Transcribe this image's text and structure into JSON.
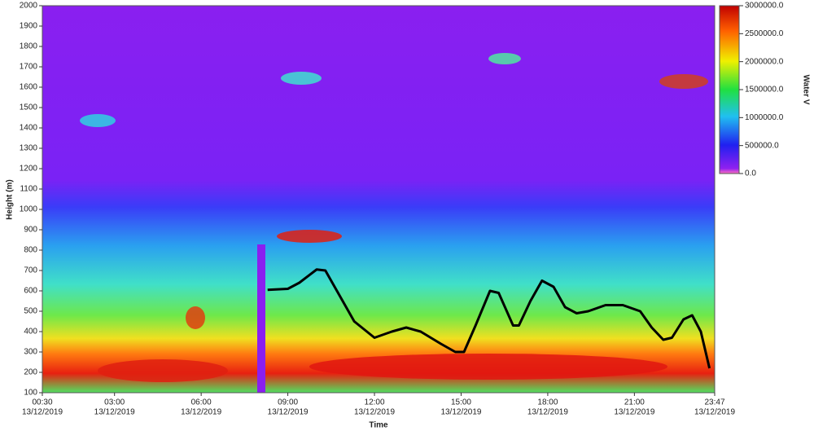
{
  "chart_data": {
    "type": "line",
    "x_label": "Time",
    "y_label": "Height (m)",
    "xlim": [
      0.5,
      23.78
    ],
    "ylim": [
      100,
      2000
    ],
    "xticks": [
      {
        "value": 0.5,
        "label": "00:30",
        "date": "13/12/2019"
      },
      {
        "value": 3,
        "label": "03:00",
        "date": "13/12/2019"
      },
      {
        "value": 6,
        "label": "06:00",
        "date": "13/12/2019"
      },
      {
        "value": 9,
        "label": "09:00",
        "date": "13/12/2019"
      },
      {
        "value": 12,
        "label": "12:00",
        "date": "13/12/2019"
      },
      {
        "value": 15,
        "label": "15:00",
        "date": "13/12/2019"
      },
      {
        "value": 18,
        "label": "18:00",
        "date": "13/12/2019"
      },
      {
        "value": 21,
        "label": "21:00",
        "date": "13/12/2019"
      },
      {
        "value": 23.78,
        "label": "23:47",
        "date": "13/12/2019"
      }
    ],
    "yticks": [
      100,
      200,
      300,
      400,
      500,
      600,
      700,
      800,
      900,
      1000,
      1100,
      1200,
      1300,
      1400,
      1500,
      1600,
      1700,
      1800,
      1900,
      2000
    ],
    "series": [
      {
        "color": "#000000",
        "x": [
          8.3,
          9.0,
          9.4,
          10.0,
          10.3,
          10.7,
          11.3,
          12.0,
          12.6,
          13.1,
          13.6,
          14.3,
          14.8,
          15.1,
          15.5,
          16.0,
          16.3,
          16.8,
          17.0,
          17.4,
          17.8,
          18.2,
          18.6,
          19.0,
          19.4,
          20.0,
          20.6,
          21.2,
          21.6,
          22.0,
          22.3,
          22.7,
          23.0,
          23.3,
          23.6
        ],
        "values": [
          605,
          610,
          640,
          705,
          700,
          600,
          450,
          370,
          400,
          420,
          400,
          340,
          300,
          300,
          430,
          600,
          590,
          430,
          430,
          550,
          650,
          620,
          520,
          490,
          500,
          530,
          530,
          500,
          420,
          360,
          370,
          460,
          480,
          400,
          220
        ]
      }
    ],
    "colorbar": {
      "label": "Water V",
      "lim": [
        0,
        3000000
      ],
      "ticks": [
        {
          "value": 0,
          "label": "0.0"
        },
        {
          "value": 500000,
          "label": "500000.0"
        },
        {
          "value": 1000000,
          "label": "1000000.0"
        },
        {
          "value": 1500000,
          "label": "1500000.0"
        },
        {
          "value": 2000000,
          "label": "2000000.0"
        },
        {
          "value": 2500000,
          "label": "2500000.0"
        },
        {
          "value": 3000000,
          "label": "3000000.0"
        }
      ]
    }
  }
}
